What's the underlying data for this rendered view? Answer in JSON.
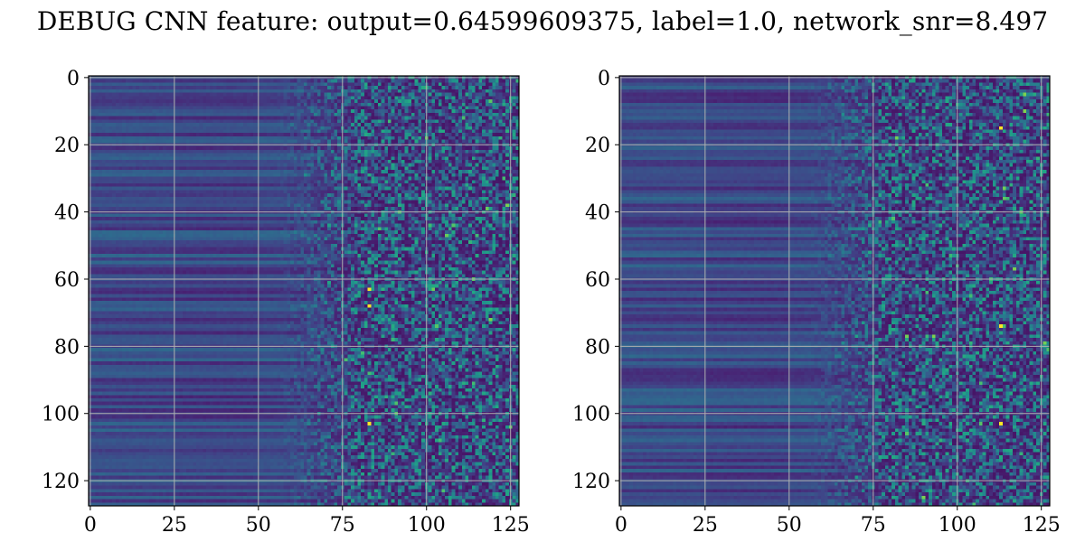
{
  "title": "DEBUG CNN feature: output=0.64599609375, label=1.0, network_snr=8.497",
  "chart_data": [
    {
      "type": "heatmap",
      "colormap": "viridis",
      "rows": 128,
      "cols": 128,
      "xlim": [
        -0.5,
        127.5
      ],
      "ylim": [
        127.5,
        -0.5
      ],
      "xticks": [
        0,
        25,
        50,
        75,
        100,
        125
      ],
      "yticks": [
        0,
        20,
        40,
        60,
        80,
        100,
        120
      ],
      "grid": true,
      "hotspots": [
        {
          "x": 83,
          "y": 63
        },
        {
          "x": 83,
          "y": 68
        },
        {
          "x": 83,
          "y": 103
        }
      ]
    },
    {
      "type": "heatmap",
      "colormap": "viridis",
      "rows": 128,
      "cols": 128,
      "xlim": [
        -0.5,
        127.5
      ],
      "ylim": [
        127.5,
        -0.5
      ],
      "xticks": [
        0,
        25,
        50,
        75,
        100,
        125
      ],
      "yticks": [
        0,
        20,
        40,
        60,
        80,
        100,
        120
      ],
      "grid": true,
      "hotspots": [
        {
          "x": 113,
          "y": 15
        },
        {
          "x": 113,
          "y": 74
        },
        {
          "x": 113,
          "y": 103
        }
      ]
    }
  ]
}
